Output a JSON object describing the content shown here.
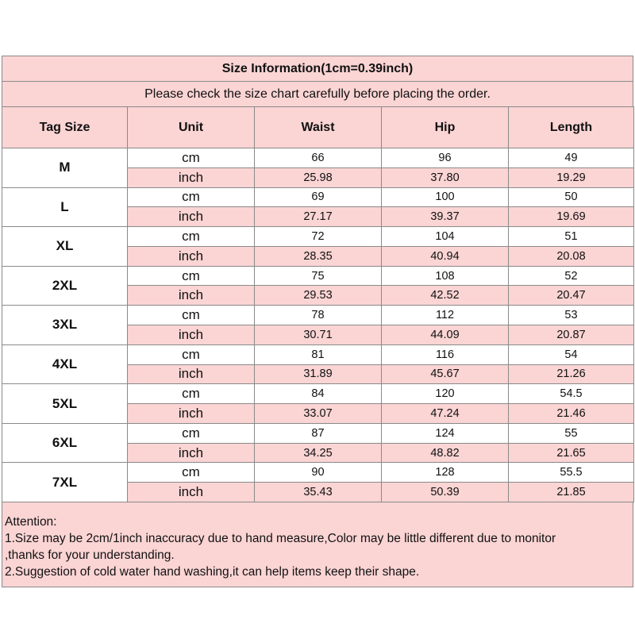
{
  "header": {
    "title": "Size Information(1cm=0.39inch)",
    "subtitle": "Please check the size chart carefully before placing the order."
  },
  "table": {
    "columns": [
      "Tag Size",
      "Unit",
      "Waist",
      "Hip",
      "Length"
    ],
    "rows": [
      {
        "tag": "M",
        "units": [
          {
            "unit": "cm",
            "values": [
              "66",
              "96",
              "49"
            ]
          },
          {
            "unit": "inch",
            "values": [
              "25.98",
              "37.80",
              "19.29"
            ]
          }
        ]
      },
      {
        "tag": "L",
        "units": [
          {
            "unit": "cm",
            "values": [
              "69",
              "100",
              "50"
            ]
          },
          {
            "unit": "inch",
            "values": [
              "27.17",
              "39.37",
              "19.69"
            ]
          }
        ]
      },
      {
        "tag": "XL",
        "units": [
          {
            "unit": "cm",
            "values": [
              "72",
              "104",
              "51"
            ]
          },
          {
            "unit": "inch",
            "values": [
              "28.35",
              "40.94",
              "20.08"
            ]
          }
        ]
      },
      {
        "tag": "2XL",
        "units": [
          {
            "unit": "cm",
            "values": [
              "75",
              "108",
              "52"
            ]
          },
          {
            "unit": "inch",
            "values": [
              "29.53",
              "42.52",
              "20.47"
            ]
          }
        ]
      },
      {
        "tag": "3XL",
        "units": [
          {
            "unit": "cm",
            "values": [
              "78",
              "112",
              "53"
            ]
          },
          {
            "unit": "inch",
            "values": [
              "30.71",
              "44.09",
              "20.87"
            ]
          }
        ]
      },
      {
        "tag": "4XL",
        "units": [
          {
            "unit": "cm",
            "values": [
              "81",
              "116",
              "54"
            ]
          },
          {
            "unit": "inch",
            "values": [
              "31.89",
              "45.67",
              "21.26"
            ]
          }
        ]
      },
      {
        "tag": "5XL",
        "units": [
          {
            "unit": "cm",
            "values": [
              "84",
              "120",
              "54.5"
            ]
          },
          {
            "unit": "inch",
            "values": [
              "33.07",
              "47.24",
              "21.46"
            ]
          }
        ]
      },
      {
        "tag": "6XL",
        "units": [
          {
            "unit": "cm",
            "values": [
              "87",
              "124",
              "55"
            ]
          },
          {
            "unit": "inch",
            "values": [
              "34.25",
              "48.82",
              "21.65"
            ]
          }
        ]
      },
      {
        "tag": "7XL",
        "units": [
          {
            "unit": "cm",
            "values": [
              "90",
              "128",
              "55.5"
            ]
          },
          {
            "unit": "inch",
            "values": [
              "35.43",
              "50.39",
              "21.85"
            ]
          }
        ]
      }
    ]
  },
  "notes": [
    "Attention:",
    "1.Size may be 2cm/1inch inaccuracy due to hand measure,Color may be little different due to monitor",
    ",thanks for your understanding.",
    "2.Suggestion of cold water hand washing,it can help items keep their shape."
  ]
}
